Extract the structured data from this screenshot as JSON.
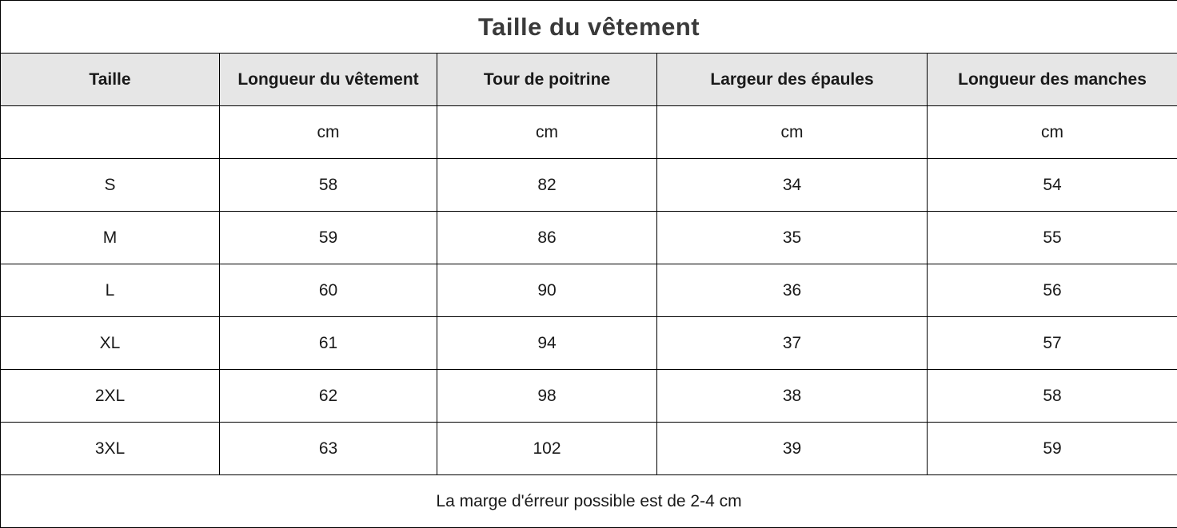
{
  "title": "Taille du vêtement",
  "columns": [
    "Taille",
    "Longueur du vêtement",
    "Tour de poitrine",
    "Largeur des épaules",
    "Longueur des manches"
  ],
  "units": [
    "",
    "cm",
    "cm",
    "cm",
    "cm"
  ],
  "rows": [
    [
      "S",
      "58",
      "82",
      "34",
      "54"
    ],
    [
      "M",
      "59",
      "86",
      "35",
      "55"
    ],
    [
      "L",
      "60",
      "90",
      "36",
      "56"
    ],
    [
      "XL",
      "61",
      "94",
      "37",
      "57"
    ],
    [
      "2XL",
      "62",
      "98",
      "38",
      "58"
    ],
    [
      "3XL",
      "63",
      "102",
      "39",
      "59"
    ]
  ],
  "note": "La marge d'érreur possible est de 2-4 cm",
  "colors": {
    "header_background": "#e6e6e6",
    "border": "#000000",
    "title_text": "#3a3a3a"
  }
}
